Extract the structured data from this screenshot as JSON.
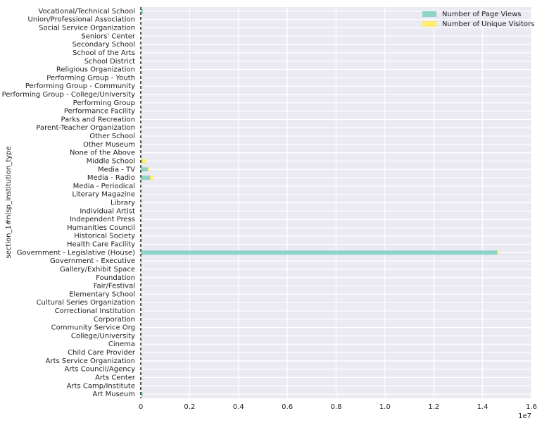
{
  "chart_data": {
    "type": "barh_stacked",
    "ylabel": "section_1#nisp_institution_type",
    "x_offset_label": "1e7",
    "categories": [
      "Art Museum",
      "Arts Camp/Institute",
      "Arts Center",
      "Arts Council/Agency",
      "Arts Service Organization",
      "Child Care Provider",
      "Cinema",
      "College/University",
      "Community Service Org",
      "Corporation",
      "Correctional Institution",
      "Cultural Series Organization",
      "Elementary School",
      "Fair/Festival",
      "Foundation",
      "Gallery/Exhibit Space",
      "Government - Executive",
      "Government - Legislative (House)",
      "Health Care Facility",
      "Historical Society",
      "Humanities Council",
      "Independent Press",
      "Individual Artist",
      "Library",
      "Literary Magazine",
      "Media - Periodical",
      "Media - Radio",
      "Media - TV",
      "Middle School",
      "None of the Above",
      "Other Museum",
      "Other School",
      "Parent-Teacher Organization",
      "Parks and Recreation",
      "Performance Facility",
      "Performing Group",
      "Performing Group - College/University",
      "Performing Group - Community",
      "Performing Group - Youth",
      "Religious Organization",
      "School District",
      "School of the Arts",
      "Secondary School",
      "Seniors' Center",
      "Social Service Organization",
      "Union/Professional Association",
      "Vocational/Technical School"
    ],
    "series": [
      {
        "name": "Number of Page Views",
        "color": "#8dd3c7",
        "values": [
          80000,
          5000,
          10000,
          10000,
          5000,
          2000,
          5000,
          20000,
          5000,
          5000,
          2000,
          5000,
          10000,
          10000,
          10000,
          10000,
          20000,
          14600000,
          5000,
          10000,
          5000,
          5000,
          20000,
          10000,
          5000,
          10000,
          375000,
          290000,
          30000,
          10000,
          40000,
          10000,
          5000,
          5000,
          10000,
          10000,
          5000,
          5000,
          5000,
          5000,
          10000,
          10000,
          10000,
          5000,
          5000,
          5000,
          90000
        ]
      },
      {
        "name": "Number of Unique Visitors",
        "color": "#ffed6f",
        "values": [
          5000,
          1000,
          2000,
          2000,
          1000,
          500,
          1000,
          5000,
          1000,
          1000,
          500,
          1000,
          2000,
          2000,
          2000,
          2000,
          5000,
          60000,
          1000,
          2000,
          1000,
          1000,
          5000,
          2000,
          1000,
          2000,
          115000,
          60000,
          200000,
          2000,
          10000,
          2000,
          1000,
          1000,
          2000,
          2000,
          1000,
          1000,
          1000,
          1000,
          2000,
          2000,
          2000,
          1000,
          1000,
          1000,
          10000
        ]
      }
    ],
    "xlim": [
      0,
      16000000
    ],
    "xticks": [
      0,
      {
        "value": 2000000,
        "label": "0.2"
      },
      {
        "value": 4000000,
        "label": "0.4"
      },
      {
        "value": 6000000,
        "label": "0.6"
      },
      {
        "value": 8000000,
        "label": "0.8"
      },
      {
        "value": 10000000,
        "label": "1.0"
      },
      {
        "value": 12000000,
        "label": "1.2"
      },
      {
        "value": 14000000,
        "label": "1.4"
      },
      {
        "value": 16000000,
        "label": "1.6"
      }
    ],
    "grid": true,
    "legend": "upper right"
  }
}
